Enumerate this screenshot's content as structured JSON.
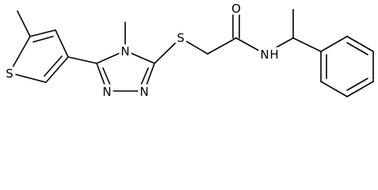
{
  "atoms": [
    "S",
    "N",
    "N",
    "N",
    "S",
    "O",
    "N",
    "H"
  ]
}
